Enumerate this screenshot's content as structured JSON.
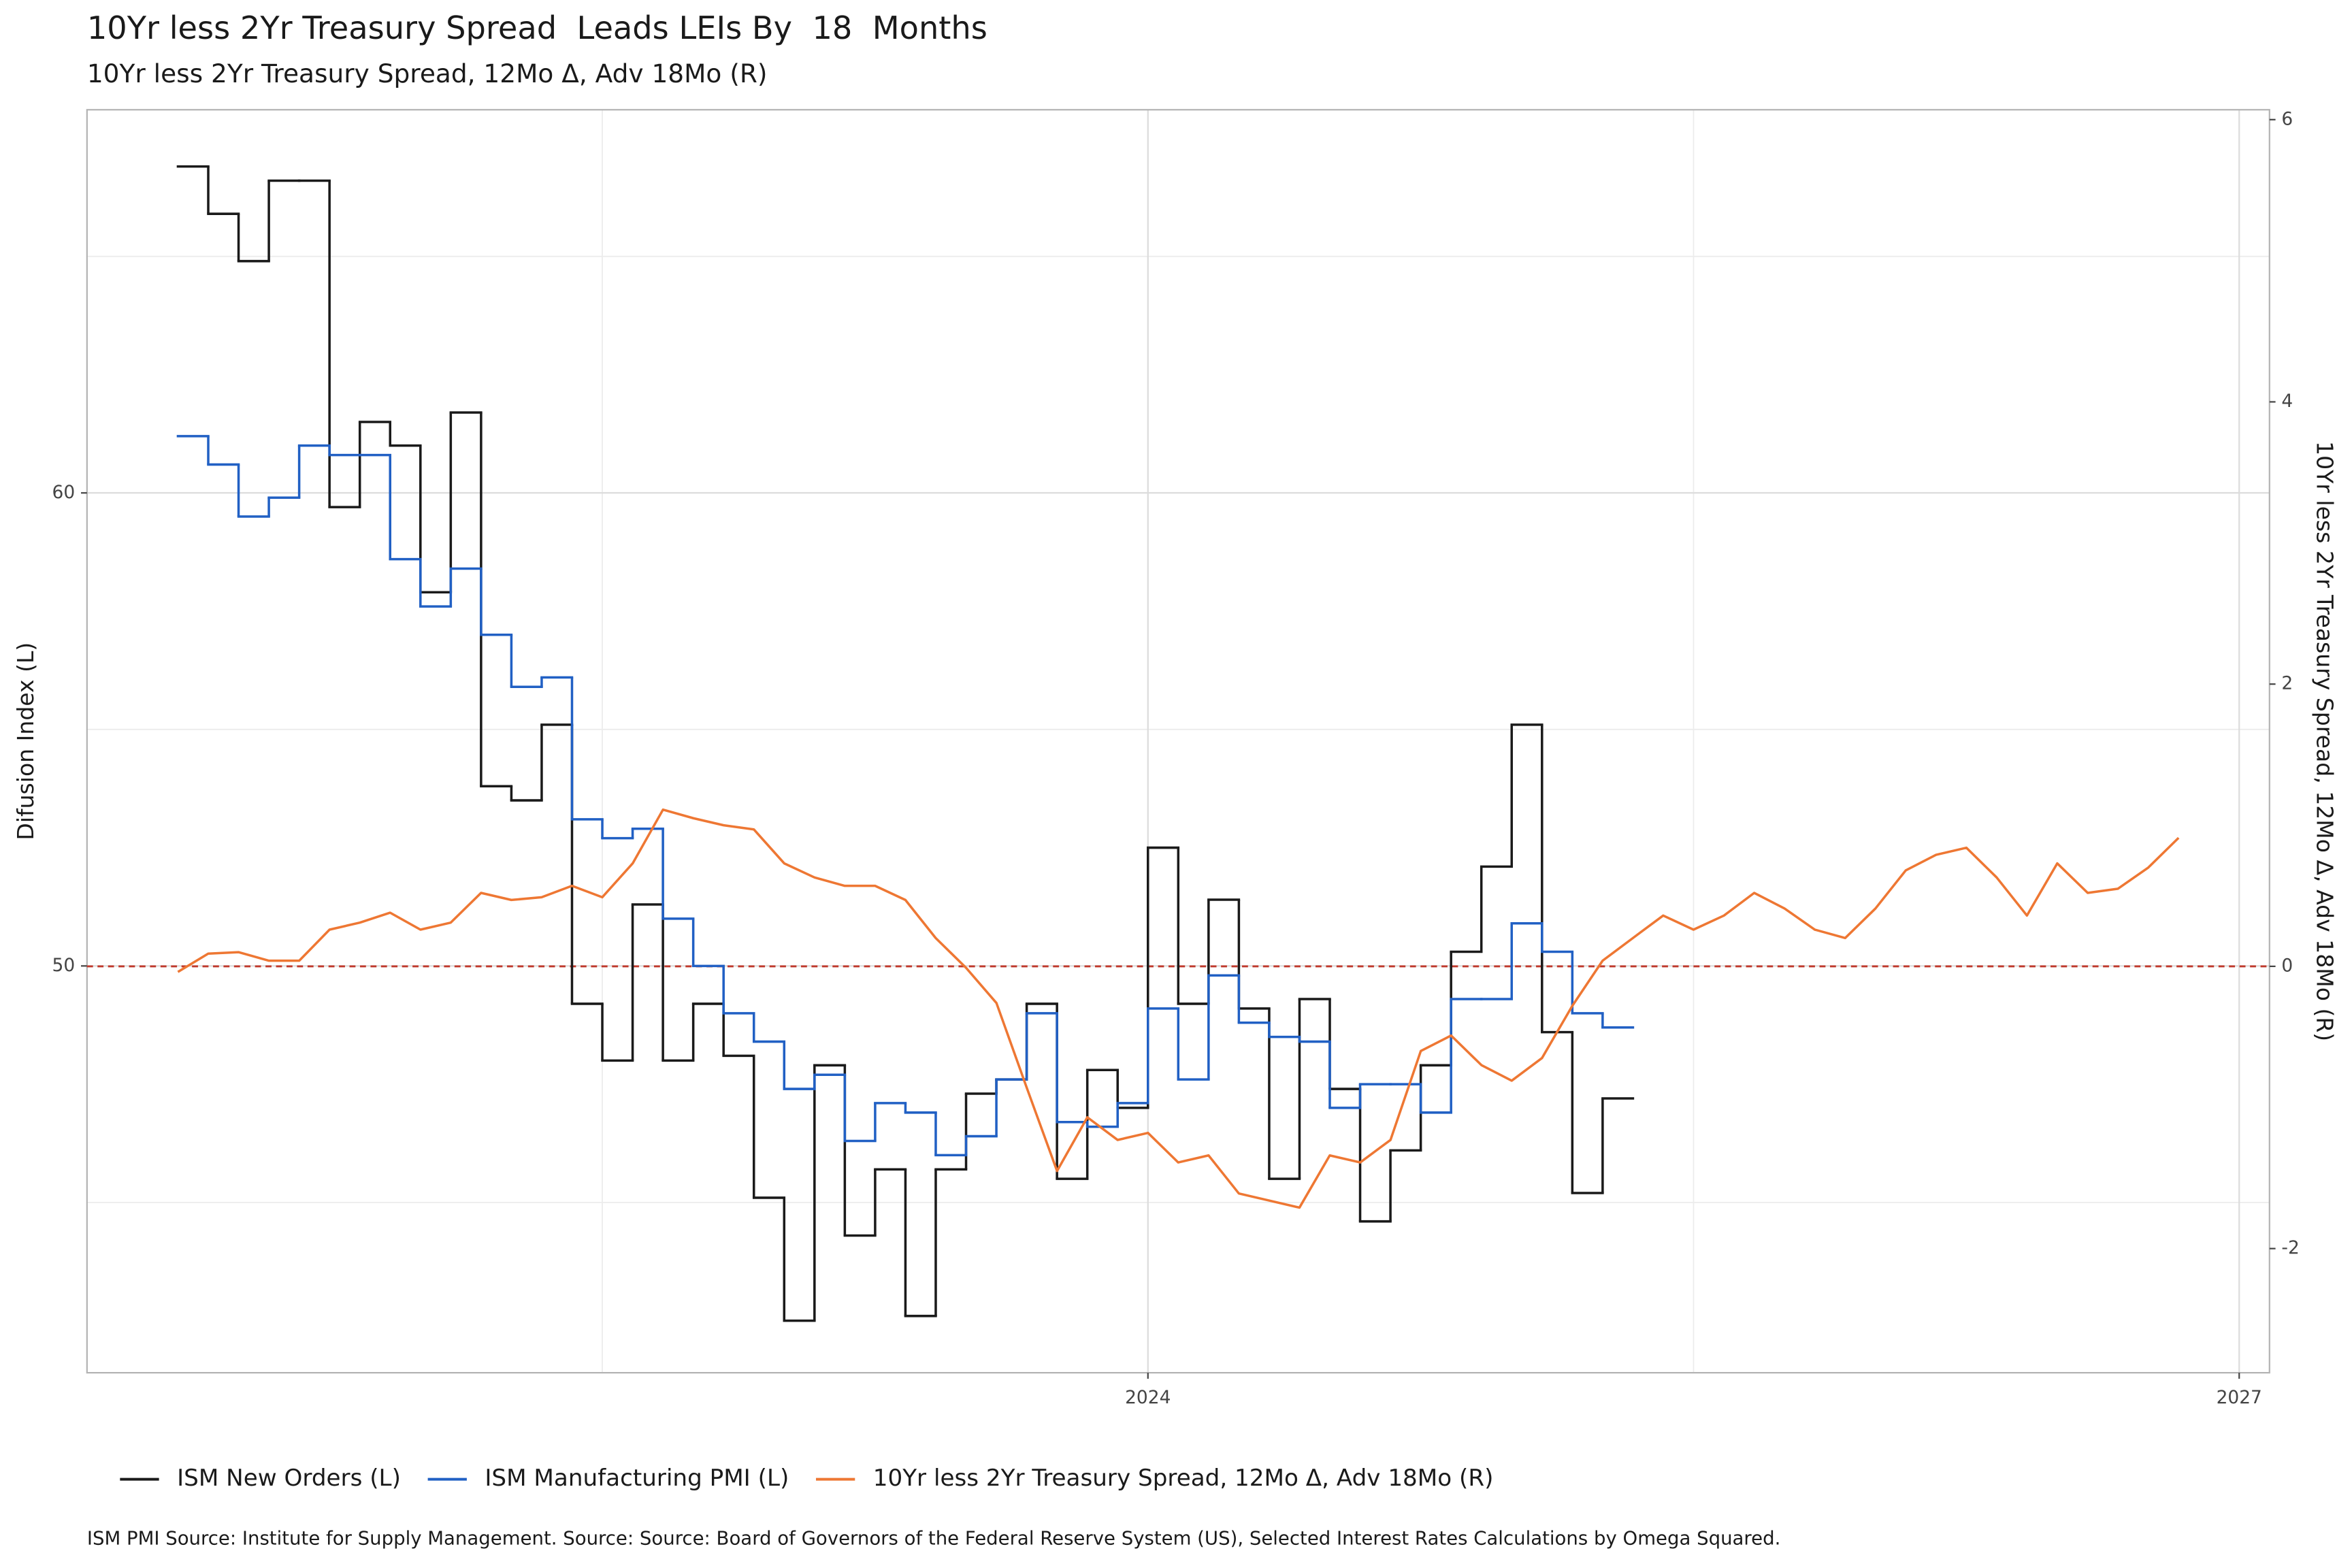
{
  "chart_data": {
    "type": "line",
    "title": "10Yr less 2Yr Treasury Spread  Leads LEIs By  18  Months",
    "subtitle": "10Yr less 2Yr Treasury Spread, 12Mo Δ, Adv 18Mo (R)",
    "ylabel": "Difusion Index (L)",
    "y2label": "10Yr less 2Yr Treasury Spread, 12Mo Δ, Adv 18Mo (R)",
    "caption": "ISM PMI Source: Institute for Supply Management. Source: Source: Board of Governors of the Federal Reserve System (US), Selected Interest Rates Calculations by Omega Squared.",
    "xlim": [
      "2021-02",
      "2027-02"
    ],
    "xticks": [
      "2024",
      "2027"
    ],
    "x_minor_ticks": [
      "2022-07",
      "2025-07"
    ],
    "ylim": [
      41.4,
      68.1
    ],
    "yticks": [
      50,
      60
    ],
    "y_minor_ticks": [
      45,
      55,
      65
    ],
    "y2lim": [
      -2.88,
      6.07
    ],
    "y2ticks": [
      -2,
      0,
      2,
      4,
      6
    ],
    "hline": {
      "value": 0,
      "axis": "y2",
      "color": "#c0392b"
    },
    "grid": true,
    "legend": "bottom",
    "series": [
      {
        "name": "ISM New Orders (L)",
        "color": "#1a1a1a",
        "drawstyle": "steps",
        "axis": "y",
        "x": [
          "2021-05",
          "2021-06",
          "2021-07",
          "2021-08",
          "2021-09",
          "2021-10",
          "2021-11",
          "2021-12",
          "2022-01",
          "2022-02",
          "2022-03",
          "2022-04",
          "2022-05",
          "2022-06",
          "2022-07",
          "2022-08",
          "2022-09",
          "2022-10",
          "2022-11",
          "2022-12",
          "2023-01",
          "2023-02",
          "2023-03",
          "2023-04",
          "2023-05",
          "2023-06",
          "2023-07",
          "2023-08",
          "2023-09",
          "2023-10",
          "2023-11",
          "2023-12",
          "2024-01",
          "2024-02",
          "2024-03",
          "2024-04",
          "2024-05",
          "2024-06",
          "2024-07",
          "2024-08",
          "2024-09",
          "2024-10",
          "2024-11",
          "2024-12",
          "2025-01",
          "2025-02",
          "2025-03",
          "2025-04"
        ],
        "values": [
          66.9,
          65.9,
          64.9,
          66.6,
          66.6,
          59.7,
          61.5,
          61.0,
          57.9,
          61.7,
          53.8,
          53.5,
          55.1,
          49.2,
          48.0,
          51.3,
          48.0,
          49.2,
          48.1,
          45.1,
          42.5,
          47.9,
          44.3,
          45.7,
          42.6,
          45.7,
          47.3,
          47.6,
          49.2,
          45.5,
          47.8,
          47.0,
          52.5,
          49.2,
          51.4,
          49.1,
          45.5,
          49.3,
          47.4,
          44.6,
          46.1,
          47.9,
          50.3,
          52.1,
          55.1,
          48.6,
          45.2,
          47.2
        ]
      },
      {
        "name": "ISM Manufacturing PMI (L)",
        "color": "#2160c4",
        "drawstyle": "steps",
        "axis": "y",
        "x": [
          "2021-05",
          "2021-06",
          "2021-07",
          "2021-08",
          "2021-09",
          "2021-10",
          "2021-11",
          "2021-12",
          "2022-01",
          "2022-02",
          "2022-03",
          "2022-04",
          "2022-05",
          "2022-06",
          "2022-07",
          "2022-08",
          "2022-09",
          "2022-10",
          "2022-11",
          "2022-12",
          "2023-01",
          "2023-02",
          "2023-03",
          "2023-04",
          "2023-05",
          "2023-06",
          "2023-07",
          "2023-08",
          "2023-09",
          "2023-10",
          "2023-11",
          "2023-12",
          "2024-01",
          "2024-02",
          "2024-03",
          "2024-04",
          "2024-05",
          "2024-06",
          "2024-07",
          "2024-08",
          "2024-09",
          "2024-10",
          "2024-11",
          "2024-12",
          "2025-01",
          "2025-02",
          "2025-03",
          "2025-04"
        ],
        "values": [
          61.2,
          60.6,
          59.5,
          59.9,
          61.0,
          60.8,
          60.8,
          58.6,
          57.6,
          58.4,
          57.0,
          55.9,
          56.1,
          53.1,
          52.7,
          52.9,
          51.0,
          50.0,
          49.0,
          48.4,
          47.4,
          47.7,
          46.3,
          47.1,
          46.9,
          46.0,
          46.4,
          47.6,
          49.0,
          46.7,
          46.6,
          47.1,
          49.1,
          47.6,
          49.8,
          48.8,
          48.5,
          48.4,
          47.0,
          47.5,
          47.5,
          46.9,
          49.3,
          49.3,
          50.9,
          50.3,
          49.0,
          48.7
        ]
      },
      {
        "name": "10Yr less 2Yr Treasury Spread, 12Mo Δ, Adv 18Mo (R)",
        "color": "#ee7733",
        "drawstyle": "line",
        "axis": "y2",
        "x": [
          "2021-05",
          "2021-06",
          "2021-07",
          "2021-08",
          "2021-09",
          "2021-10",
          "2021-11",
          "2021-12",
          "2022-01",
          "2022-02",
          "2022-03",
          "2022-04",
          "2022-05",
          "2022-06",
          "2022-07",
          "2022-08",
          "2022-09",
          "2022-10",
          "2022-11",
          "2022-12",
          "2023-01",
          "2023-02",
          "2023-03",
          "2023-04",
          "2023-05",
          "2023-06",
          "2023-07",
          "2023-08",
          "2023-09",
          "2023-10",
          "2023-11",
          "2023-12",
          "2024-01",
          "2024-02",
          "2024-03",
          "2024-04",
          "2024-05",
          "2024-06",
          "2024-07",
          "2024-08",
          "2024-09",
          "2024-10",
          "2024-11",
          "2024-12",
          "2025-01",
          "2025-02",
          "2025-03",
          "2025-04",
          "2025-05",
          "2025-06",
          "2025-07",
          "2025-08",
          "2025-09",
          "2025-10",
          "2025-11",
          "2025-12",
          "2026-01",
          "2026-02",
          "2026-03",
          "2026-04",
          "2026-05",
          "2026-06",
          "2026-07",
          "2026-08",
          "2026-09",
          "2026-10",
          "2026-11"
        ],
        "values": [
          -0.04,
          0.09,
          0.1,
          0.04,
          0.04,
          0.26,
          0.31,
          0.38,
          0.26,
          0.31,
          0.52,
          0.47,
          0.49,
          0.57,
          0.49,
          0.73,
          1.11,
          1.05,
          1.0,
          0.97,
          0.73,
          0.63,
          0.57,
          0.57,
          0.47,
          0.2,
          -0.01,
          -0.26,
          -0.86,
          -1.45,
          -1.07,
          -1.23,
          -1.18,
          -1.39,
          -1.34,
          -1.61,
          -1.66,
          -1.71,
          -1.34,
          -1.39,
          -1.23,
          -0.6,
          -0.49,
          -0.7,
          -0.81,
          -0.65,
          -0.28,
          0.04,
          0.2,
          0.36,
          0.26,
          0.36,
          0.52,
          0.41,
          0.26,
          0.2,
          0.41,
          0.68,
          0.79,
          0.84,
          0.63,
          0.36,
          0.73,
          0.52,
          0.55,
          0.7,
          0.91
        ]
      }
    ]
  }
}
